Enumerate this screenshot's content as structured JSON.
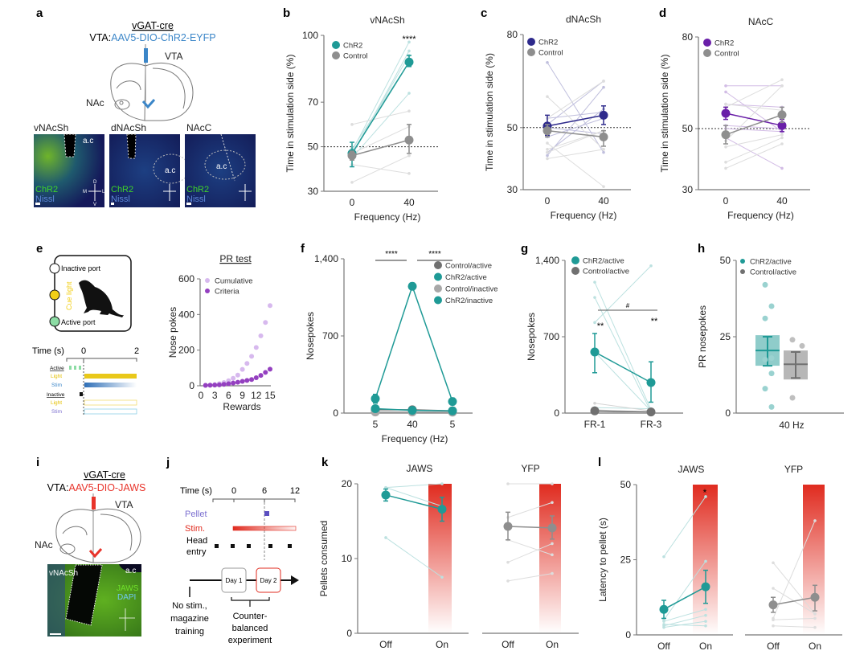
{
  "panel_letters": {
    "a": "a",
    "b": "b",
    "c": "c",
    "d": "d",
    "e": "e",
    "f": "f",
    "g": "g",
    "h": "h",
    "i": "i",
    "j": "j",
    "k": "k",
    "l": "l"
  },
  "panel_a": {
    "mouse_line": "vGAT-cre",
    "injection_prefix": "VTA:",
    "virus": "AAV5-DIO-ChR2-EYFP",
    "vta_label": "VTA",
    "nac_label": "NAc",
    "micrographs": [
      {
        "title": "vNAcSh",
        "marker": "ChR2",
        "stain": "Nissl",
        "structure": "a.c"
      },
      {
        "title": "dNAcSh",
        "marker": "ChR2",
        "stain": "Nissl",
        "structure": "a.c"
      },
      {
        "title": "NAcC",
        "marker": "ChR2",
        "stain": "Nissl",
        "structure": "a.c"
      }
    ],
    "compass": {
      "d": "D",
      "v": "V",
      "m": "M",
      "l": "L"
    },
    "virus_color": "#3b86c8"
  },
  "panel_e": {
    "inactive_port": "Inactive port",
    "active_port": "Active port",
    "cue_light": "Cue light",
    "time_label": "Time (s)",
    "t0": "0",
    "t2": "2",
    "rows": {
      "active": "Active",
      "light1": "Light",
      "stim1": "Stim",
      "inactive": "Inactive",
      "light2": "Light",
      "stim2": "Stim"
    }
  },
  "panel_i": {
    "mouse_line": "vGAT-cre",
    "injection_prefix": "VTA:",
    "virus": "AAV5-DIO-JAWS",
    "vta_label": "VTA",
    "nac_label": "NAc",
    "micrograph": {
      "title": "vNAcSh",
      "structure": "a.c",
      "marker": "JAWS",
      "stain": "DAPI"
    },
    "virus_color": "#e8332a"
  },
  "panel_j": {
    "time_label": "Time (s)",
    "ticks": [
      "0",
      "6",
      "12"
    ],
    "pellet": "Pellet",
    "stim": "Stim.",
    "head_entry_1": "Head",
    "head_entry_2": "entry",
    "day1": "Day 1",
    "day2": "Day 2",
    "left_note": [
      "No stim.,",
      "magazine",
      "training"
    ],
    "right_note": [
      "Counter-",
      "balanced",
      "experiment"
    ]
  },
  "chart_data": [
    {
      "id": "b",
      "type": "line",
      "title": "vNAcSh",
      "xlabel": "Frequency (Hz)",
      "ylabel": "Time in stimulation side (%)",
      "categories": [
        "0",
        "40"
      ],
      "ylim": [
        30,
        100
      ],
      "yticks": [
        30,
        50,
        70,
        100
      ],
      "ytick_labels": [
        "30",
        "50",
        "70",
        "100"
      ],
      "hline": 50,
      "annotations": [
        "****"
      ],
      "legend": "top-left",
      "series": [
        {
          "name": "ChR2",
          "color": "#1f9a96",
          "mean": [
            47,
            88
          ],
          "err": [
            [
              41,
              52
            ],
            [
              86,
              91
            ]
          ],
          "individual": [
            [
              48,
              97
            ],
            [
              46,
              93
            ],
            [
              45,
              74
            ],
            [
              47,
              91
            ],
            [
              49,
              88
            ]
          ]
        },
        {
          "name": "Control",
          "color": "#8e8e8e",
          "mean": [
            46,
            53
          ],
          "err": [
            [
              44,
              48
            ],
            [
              47,
              60
            ]
          ],
          "individual": [
            [
              60,
              66
            ],
            [
              42,
              38
            ],
            [
              34,
              46
            ],
            [
              47,
              59
            ]
          ]
        }
      ]
    },
    {
      "id": "c",
      "type": "line",
      "title": "dNAcSh",
      "xlabel": "Frequency (Hz)",
      "ylabel": "Time in stimulation side (%)",
      "categories": [
        "0",
        "40"
      ],
      "ylim": [
        30,
        80
      ],
      "yticks": [
        30,
        50,
        80
      ],
      "ytick_labels": [
        "30",
        "50",
        "80"
      ],
      "hline": 50,
      "legend": "top-left",
      "series": [
        {
          "name": "ChR2",
          "color": "#2e2a8c",
          "mean": [
            50.5,
            54
          ],
          "err": [
            [
              47.5,
              54
            ],
            [
              51,
              57
            ]
          ],
          "individual": [
            [
              71,
              42
            ],
            [
              41,
              63
            ],
            [
              42,
              56
            ],
            [
              51,
              65
            ],
            [
              53,
              55
            ],
            [
              47,
              53
            ],
            [
              50,
              48
            ]
          ]
        },
        {
          "name": "Control",
          "color": "#8e8e8e",
          "mean": [
            49,
            47
          ],
          "err": [
            [
              47,
              51
            ],
            [
              44,
              49
            ]
          ],
          "individual": [
            [
              60,
              43
            ],
            [
              53,
              65
            ],
            [
              45,
              31
            ],
            [
              43,
              49
            ],
            [
              40,
              43
            ],
            [
              42,
              49
            ]
          ]
        }
      ]
    },
    {
      "id": "d",
      "type": "line",
      "title": "NAcC",
      "xlabel": "Frequency (Hz)",
      "ylabel": "Time in stimulation side (%)",
      "categories": [
        "0",
        "40"
      ],
      "ylim": [
        30,
        80
      ],
      "yticks": [
        30,
        50,
        80
      ],
      "ytick_labels": [
        "30",
        "50",
        "80"
      ],
      "hline": 50,
      "legend": "top-left",
      "series": [
        {
          "name": "ChR2",
          "color": "#6a1fa8",
          "mean": [
            55,
            51
          ],
          "err": [
            [
              53,
              57
            ],
            [
              49,
              53
            ]
          ],
          "individual": [
            [
              64,
              64
            ],
            [
              62,
              49
            ],
            [
              58,
              57
            ],
            [
              51,
              50
            ],
            [
              47,
              37
            ],
            [
              50,
              49
            ]
          ]
        },
        {
          "name": "Control",
          "color": "#8e8e8e",
          "mean": [
            48,
            54.5
          ],
          "err": [
            [
              45,
              51
            ],
            [
              52,
              57
            ]
          ],
          "individual": [
            [
              58,
              56
            ],
            [
              57,
              66
            ],
            [
              46,
              64
            ],
            [
              39,
              47
            ],
            [
              37,
              45
            ],
            [
              44,
              48
            ]
          ]
        }
      ]
    },
    {
      "id": "e",
      "type": "scatter",
      "title": "PR test",
      "xlabel": "Rewards",
      "ylabel": "Nose pokes",
      "xlim": [
        0,
        15
      ],
      "xticks": [
        "0",
        "3",
        "6",
        "9",
        "12",
        "15"
      ],
      "ylim": [
        0,
        600
      ],
      "yticks": [
        0,
        200,
        400,
        600
      ],
      "ytick_labels": [
        "0",
        "200",
        "400",
        "600"
      ],
      "legend": "top-left",
      "x": [
        1,
        2,
        3,
        4,
        5,
        6,
        7,
        8,
        9,
        10,
        11,
        12,
        13,
        14,
        15
      ],
      "series": [
        {
          "name": "Cumulative",
          "color": "#d7b9ee",
          "values": [
            2,
            4,
            7,
            12,
            18,
            28,
            42,
            60,
            92,
            125,
            165,
            215,
            280,
            355,
            450
          ]
        },
        {
          "name": "Criteria",
          "color": "#9440c0",
          "values": [
            2,
            3,
            4,
            5,
            8,
            11,
            15,
            20,
            25,
            30,
            35,
            45,
            58,
            75,
            93
          ]
        }
      ]
    },
    {
      "id": "f",
      "type": "line",
      "xlabel": "Frequency (Hz)",
      "ylabel": "Nosepokes",
      "categories": [
        "5",
        "40",
        "5"
      ],
      "ylim": [
        0,
        1400
      ],
      "yticks": [
        0,
        700,
        1400
      ],
      "ytick_labels": [
        "0",
        "700",
        "1,400"
      ],
      "annotations": [
        "****",
        "****"
      ],
      "legend": "top-right",
      "series": [
        {
          "name": "Control/active",
          "color": "#707070",
          "mean": [
            30,
            30,
            20
          ],
          "err": [
            [
              20,
              40
            ],
            [
              20,
              40
            ],
            [
              10,
              30
            ]
          ]
        },
        {
          "name": "ChR2/active",
          "color": "#1f9a96",
          "mean": [
            130,
            1150,
            105
          ],
          "err": [
            [
              90,
              170
            ],
            [
              1120,
              1180
            ],
            [
              75,
              135
            ]
          ]
        },
        {
          "name": "Control/inactive",
          "color": "#a8a8a8",
          "mean": [
            10,
            10,
            8
          ],
          "err": [
            [
              5,
              15
            ],
            [
              5,
              15
            ],
            [
              4,
              12
            ]
          ]
        },
        {
          "name": "ChR2/inactive",
          "color": "#1f9a96",
          "mean": [
            40,
            25,
            20
          ],
          "err": [
            [
              25,
              55
            ],
            [
              15,
              35
            ],
            [
              10,
              30
            ]
          ]
        }
      ]
    },
    {
      "id": "g",
      "type": "line",
      "xlabel": "",
      "ylabel": "Nosepokes",
      "categories": [
        "FR-1",
        "FR-3"
      ],
      "ylim": [
        0,
        1400
      ],
      "yticks": [
        0,
        700,
        1400
      ],
      "ytick_labels": [
        "0",
        "700",
        "1,400"
      ],
      "annotations": [
        "#",
        "**",
        "**"
      ],
      "legend": "top-left",
      "series": [
        {
          "name": "ChR2/active",
          "color": "#1f9a96",
          "mean": [
            560,
            280
          ],
          "err": [
            [
              370,
              730
            ],
            [
              100,
              470
            ]
          ],
          "individual": [
            [
              1200,
              30
            ],
            [
              1060,
              10
            ],
            [
              830,
              1350
            ],
            [
              560,
              20
            ],
            [
              50,
              40
            ]
          ]
        },
        {
          "name": "Control/active",
          "color": "#707070",
          "mean": [
            20,
            10
          ],
          "err": [
            [
              10,
              30
            ],
            [
              5,
              15
            ]
          ],
          "individual": [
            [
              90,
              20
            ],
            [
              30,
              10
            ],
            [
              10,
              5
            ]
          ]
        }
      ]
    },
    {
      "id": "h",
      "type": "bar",
      "xlabel": "40 Hz",
      "ylabel": "PR nosepokes",
      "ylim": [
        0,
        50
      ],
      "yticks": [
        0,
        25,
        50
      ],
      "ytick_labels": [
        "0",
        "25",
        "50"
      ],
      "legend": "top-left",
      "series": [
        {
          "name": "ChR2/active",
          "color": "#1f9a96",
          "mean": 20.5,
          "box": [
            15.5,
            25.5
          ],
          "err": [
            15.5,
            25
          ],
          "points": [
            42,
            35,
            31,
            18,
            17.5,
            13,
            8,
            2
          ]
        },
        {
          "name": "Control/active",
          "color": "#707070",
          "mean": 16,
          "box": [
            11,
            20.5
          ],
          "err": [
            11.5,
            20
          ],
          "points": [
            24,
            22,
            5
          ]
        }
      ]
    },
    {
      "id": "k1",
      "type": "line",
      "title": "JAWS",
      "ylabel": "Pellets consumed",
      "categories": [
        "Off",
        "On"
      ],
      "ylim": [
        0,
        20
      ],
      "yticks": [
        0,
        10,
        20
      ],
      "ytick_labels": [
        "0",
        "10",
        "20"
      ],
      "stim_bar": "On",
      "series": [
        {
          "name": "JAWS",
          "color": "#1f9a96",
          "mean": [
            18.5,
            16.6
          ],
          "err": [
            [
              17.7,
              19.3
            ],
            [
              15,
              18.2
            ]
          ],
          "individual": [
            [
              19.5,
              20
            ],
            [
              19.5,
              17
            ],
            [
              12.8,
              7.5
            ]
          ]
        }
      ]
    },
    {
      "id": "k2",
      "type": "line",
      "title": "YFP",
      "categories": [
        "Off",
        "On"
      ],
      "ylim": [
        0,
        20
      ],
      "stim_bar": "On",
      "series": [
        {
          "name": "YFP",
          "color": "#8e8e8e",
          "mean": [
            14.3,
            14.1
          ],
          "err": [
            [
              12.5,
              16.2
            ],
            [
              12.6,
              15.7
            ]
          ],
          "individual": [
            [
              20,
              20
            ],
            [
              15.5,
              17.5
            ],
            [
              12.5,
              10.5
            ],
            [
              9.5,
              12
            ],
            [
              7,
              8
            ]
          ]
        }
      ]
    },
    {
      "id": "l1",
      "type": "line",
      "title": "JAWS",
      "ylabel": "Latency to pellet (s)",
      "categories": [
        "Off",
        "On"
      ],
      "ylim": [
        0,
        50
      ],
      "yticks": [
        0,
        25,
        50
      ],
      "ytick_labels": [
        "0",
        "25",
        "50"
      ],
      "stim_bar": "On",
      "annotations": [
        "*"
      ],
      "series": [
        {
          "name": "JAWS",
          "color": "#1f9a96",
          "mean": [
            8.5,
            16
          ],
          "err": [
            [
              5.5,
              11.5
            ],
            [
              10.5,
              21.5
            ]
          ],
          "individual": [
            [
              26,
              46
            ],
            [
              5,
              24.5
            ],
            [
              4.5,
              8.5
            ],
            [
              3,
              6.5
            ],
            [
              2.5,
              4.5
            ],
            [
              3.5,
              3
            ]
          ]
        }
      ]
    },
    {
      "id": "l2",
      "type": "line",
      "title": "YFP",
      "categories": [
        "Off",
        "On"
      ],
      "ylim": [
        0,
        50
      ],
      "stim_bar": "On",
      "series": [
        {
          "name": "YFP",
          "color": "#8e8e8e",
          "mean": [
            10,
            12.5
          ],
          "err": [
            [
              7.5,
              12.5
            ],
            [
              8,
              16.5
            ]
          ],
          "individual": [
            [
              24,
              7
            ],
            [
              15.5,
              7
            ],
            [
              5.5,
              38
            ],
            [
              5,
              5.5
            ],
            [
              3,
              2.5
            ]
          ]
        }
      ]
    }
  ]
}
